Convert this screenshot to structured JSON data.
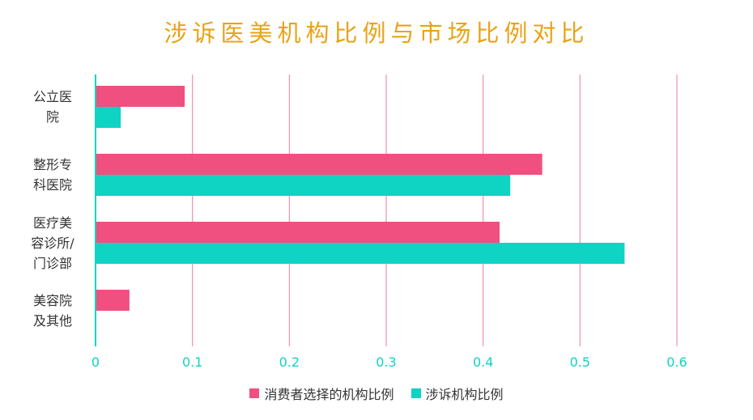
{
  "chart_data": {
    "type": "bar",
    "orientation": "horizontal",
    "title": "涉诉医美机构比例与市场比例对比",
    "categories": [
      "公立医院",
      "整形专科医院",
      "医疗美容诊所/门诊部",
      "美容院及其他"
    ],
    "category_lines": [
      [
        "公立医",
        "院"
      ],
      [
        "整形专",
        "科医院"
      ],
      [
        "医疗美",
        "容诊所/",
        "门诊部"
      ],
      [
        "美容院",
        "及其他"
      ]
    ],
    "series": [
      {
        "name": "消费者选择的机构比例",
        "color": "#f0507f",
        "values": [
          0.092,
          0.461,
          0.417,
          0.035
        ]
      },
      {
        "name": "涉诉机构比例",
        "color": "#0fd3c3",
        "values": [
          0.026,
          0.428,
          0.546,
          0.0
        ]
      }
    ],
    "xticks": [
      "0",
      "0.1",
      "0.2",
      "0.3",
      "0.4",
      "0.5",
      "0.6"
    ],
    "xlim": [
      0,
      0.6
    ],
    "grid": true,
    "legend_position": "bottom",
    "colors": {
      "title": "#e8a317",
      "grid": "#f08fb3",
      "axis": "#0fd3c3",
      "tick_label": "#0fd3c3"
    }
  }
}
